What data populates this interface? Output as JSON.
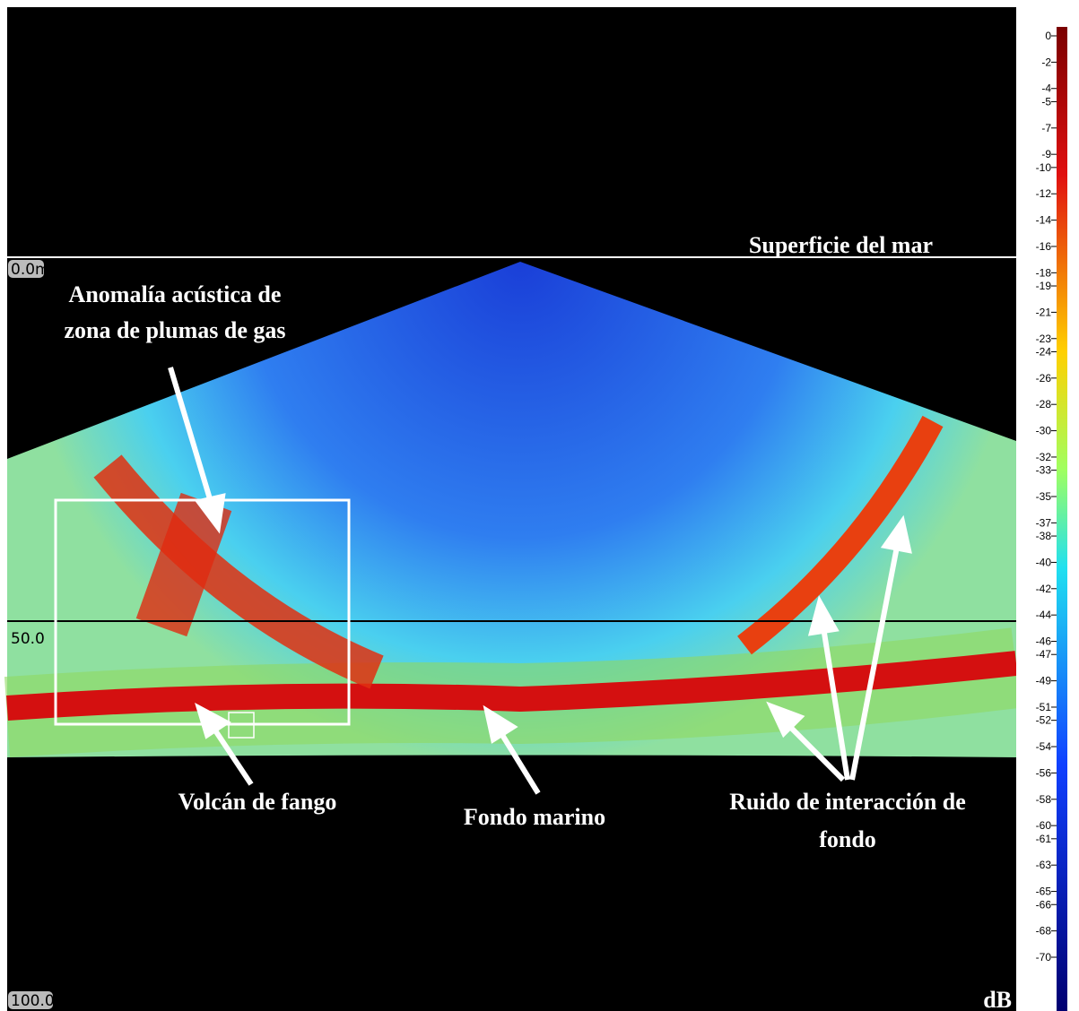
{
  "title": "Superficie del mar",
  "depth_labels": [
    "0.0m",
    "50.0",
    "100.0"
  ],
  "annotations": [
    "Anomalía acústica de",
    "zona de plumas de gas",
    "Volcán de fango",
    "Fondo marino",
    "Ruido de interacción de",
    "fondo"
  ],
  "colorbar": {
    "unit": "dB",
    "ticks": [
      0,
      -2,
      -4,
      -5,
      -7,
      -9,
      -10,
      -12,
      -14,
      -16,
      -18,
      -19,
      -21,
      -23,
      -24,
      -26,
      -28,
      -30,
      -32,
      -33,
      -35,
      -37,
      -38,
      -40,
      -42,
      -44,
      -46,
      -47,
      -49,
      -51,
      -52,
      -54,
      -56,
      -58,
      -60,
      -61,
      -63,
      -65,
      -66,
      -68,
      -70
    ]
  }
}
